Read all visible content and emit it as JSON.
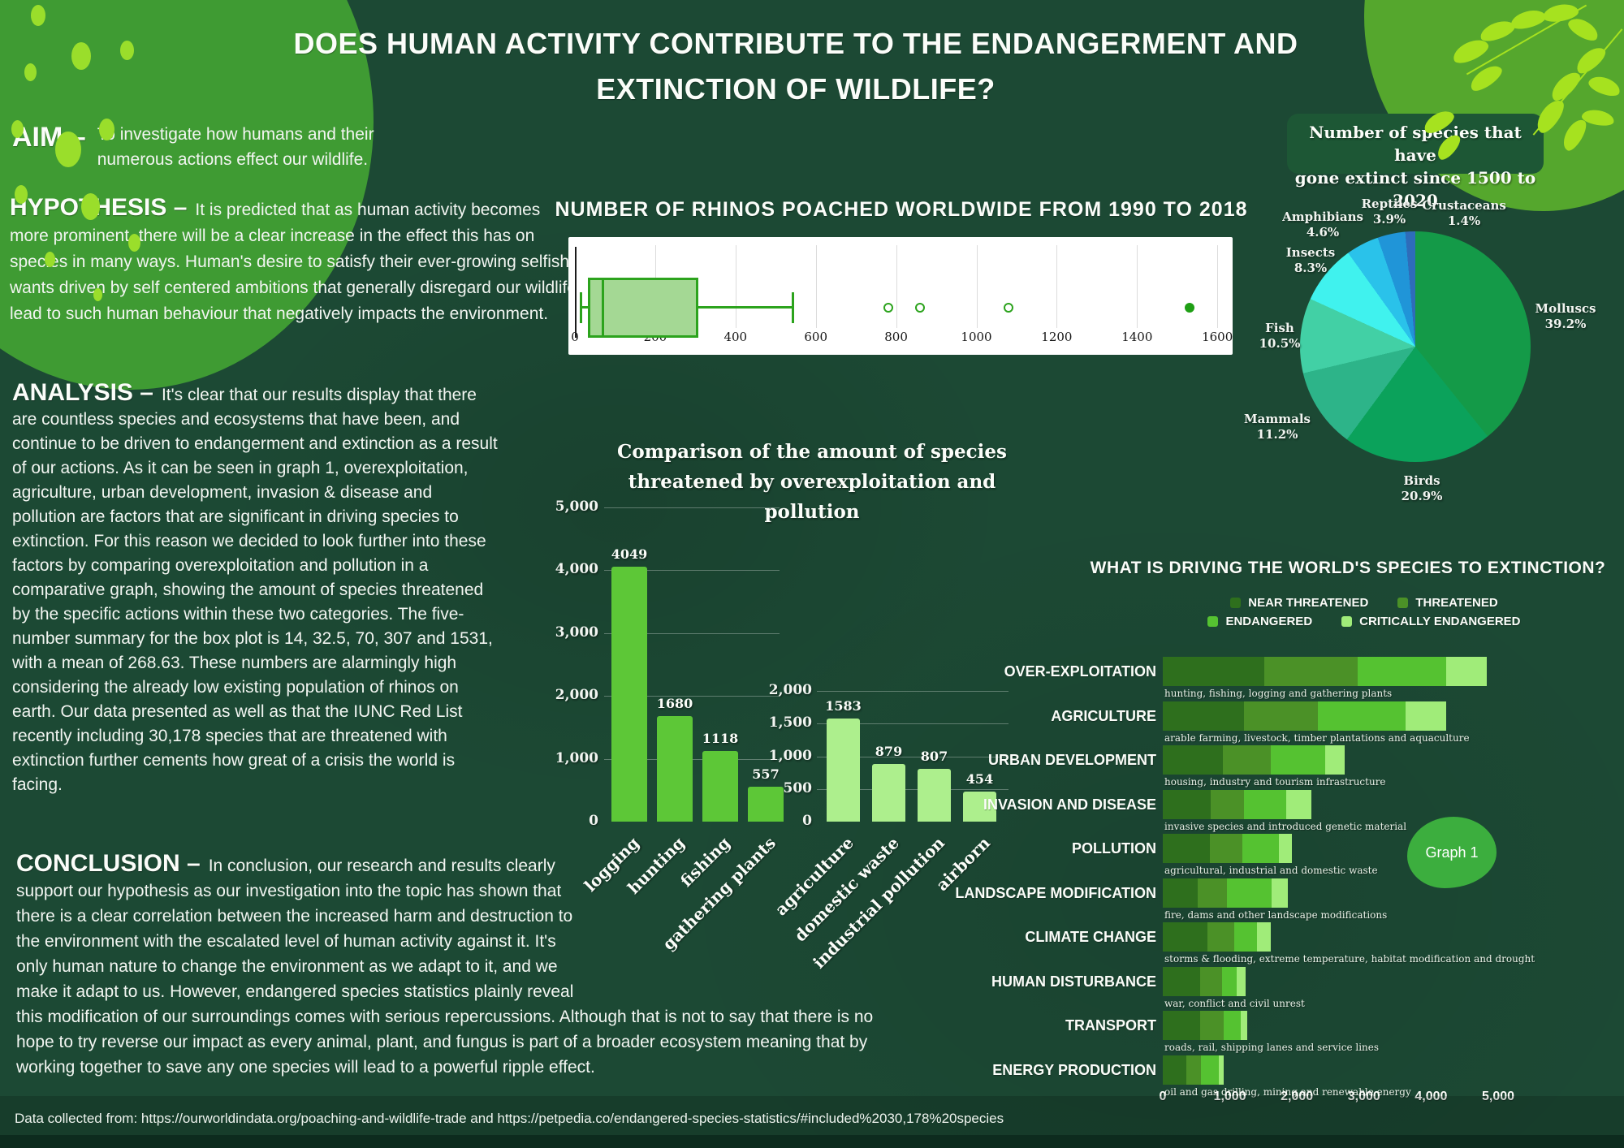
{
  "header": {
    "title_line1": "DOES HUMAN ACTIVITY CONTRIBUTE TO THE ENDANGERMENT AND",
    "title_line2": "EXTINCTION OF WILDLIFE?"
  },
  "sections": {
    "aim": {
      "heading": "AIM –",
      "text": "To investigate how humans and their numerous actions effect our wildlife."
    },
    "hypothesis": {
      "heading": "HYPOTHESIS –",
      "text": "It is predicted that as human activity becomes more prominent, there will be a clear increase in the effect this has on species in many ways. Human's desire to satisfy their ever-growing selfish wants driven by self centered ambitions that generally disregard our wildlife lead to such human behaviour that negatively impacts the environment."
    },
    "analysis": {
      "heading": "ANALYSIS –",
      "text": "It's clear that our results display that there are countless species and ecosystems that have been, and continue to be driven to endangerment and extinction as a result of our actions. As it can be seen in graph 1, overexploitation, agriculture, urban development, invasion & disease and pollution are factors that are significant in driving species to extinction. For this reason we decided to look further into these factors by comparing overexploitation and pollution in a comparative graph, showing the amount of species threatened by the specific actions within these two categories. The five-number summary for the box plot is 14, 32.5, 70, 307 and 1531, with a mean of 268.63. These numbers are alarmingly high considering the already low existing population of rhinos on earth.  Our data presented as well as that the IUNC Red List recently including 30,178 species that are threatened with extinction further cements how great of a crisis the world is facing."
    },
    "conclusion": {
      "heading": "CONCLUSION –",
      "text": "In conclusion, our research and results clearly support our hypothesis as our investigation into the topic has shown that there is a clear correlation between the increased harm and destruction to the environment with the escalated level of human activity against it. It's only human nature to change the environment as we adapt to it, and we make it adapt to us. However, endangered species statistics plainly reveal this modification of our surroundings comes with serious repercussions. Although that is not to say that there is no hope to try reverse our impact as every animal, plant, and fungus is part of a broader ecosystem meaning that by working together to save any one species will lead to a powerful ripple effect."
    }
  },
  "badges": {
    "graph1": "Graph 1"
  },
  "footer": {
    "text": "Data collected from: https://ourworldindata.org/poaching-and-wildlife-trade and https://petpedia.co/endangered-species-statistics/#included%2030,178%20species"
  },
  "chart_data": [
    {
      "id": "rhino-boxplot",
      "type": "boxplot",
      "title": "NUMBER OF RHINOS POACHED WORLDWIDE FROM 1990 TO 2018",
      "orientation": "horizontal",
      "xlim": [
        0,
        1600
      ],
      "xticks": [
        0,
        200,
        400,
        600,
        800,
        1000,
        1200,
        1400,
        1600
      ],
      "five_number_summary": {
        "min": 14,
        "q1": 32.5,
        "median": 70,
        "q3": 307,
        "max": 1531
      },
      "mean": 268.63,
      "upper_whisker": 542,
      "outliers_open": [
        780,
        860,
        1080
      ],
      "outlier_filled": 1531,
      "box_fill": "#a4d894",
      "line_color": "#2ca31d",
      "background": "#ffffff"
    },
    {
      "id": "threat-comparison",
      "type": "bar",
      "title": "Comparison of the amount of species threatened by overexploitation and pollution",
      "title_lines": [
        "Comparison of the amount of species",
        "threatened by overexploitation and",
        "pollution"
      ],
      "charts": [
        {
          "name": "overexploitation",
          "categories": [
            "logging",
            "hunting",
            "fishing",
            "gathering plants"
          ],
          "values": [
            4049,
            1680,
            1118,
            557
          ],
          "ylim": [
            0,
            5000
          ],
          "yticks": [
            0,
            1000,
            2000,
            3000,
            4000,
            5000
          ],
          "bar_color": "#5dc737"
        },
        {
          "name": "pollution",
          "categories": [
            "agriculture",
            "domestic waste",
            "industrial pollution",
            "airborn"
          ],
          "values": [
            1583,
            879,
            807,
            454
          ],
          "ylim": [
            0,
            2000
          ],
          "yticks": [
            0,
            500,
            1000,
            1500,
            2000
          ],
          "bar_color": "#adef8d"
        }
      ]
    },
    {
      "id": "extinct-species-pie",
      "type": "pie",
      "title": "Number of species that have gone extinct since 1500 to 2020",
      "title_lines": [
        "Number of species that have",
        "gone extinct since 1500 to 2020"
      ],
      "direction": "clockwise",
      "start_angle_deg": 0,
      "slices": [
        {
          "label": "Molluscs",
          "pct": 39.2,
          "color": "#149a48"
        },
        {
          "label": "Birds",
          "pct": 20.9,
          "color": "#0ba25b"
        },
        {
          "label": "Mammals",
          "pct": 11.2,
          "color": "#2db489"
        },
        {
          "label": "Fish",
          "pct": 10.5,
          "color": "#42d0a5"
        },
        {
          "label": "Insects",
          "pct": 8.3,
          "color": "#40f2ee"
        },
        {
          "label": "Amphibians",
          "pct": 4.6,
          "color": "#2ac2ea"
        },
        {
          "label": "Reptiles",
          "pct": 3.9,
          "color": "#2095d8"
        },
        {
          "label": "Crustaceans",
          "pct": 1.4,
          "color": "#2e6cba"
        }
      ]
    },
    {
      "id": "extinction-drivers",
      "type": "stacked-bar-horizontal",
      "title": "WHAT IS DRIVING THE WORLD'S SPECIES TO EXTINCTION?",
      "legend": [
        "NEAR THREATENED",
        "THREATENED",
        "ENDANGERED",
        "CRITICALLY ENDANGERED"
      ],
      "legend_colors": [
        "#2e6f1d",
        "#4b9127",
        "#55c231",
        "#a0ec79"
      ],
      "xlim": [
        0,
        5000
      ],
      "xticks": [
        0,
        1000,
        2000,
        3000,
        4000,
        5000
      ],
      "rows": [
        {
          "label": "OVER-EXPLOITATION",
          "sublabel": "hunting, fishing, logging and gathering plants",
          "values": [
            1510,
            1400,
            1320,
            600
          ]
        },
        {
          "label": "AGRICULTURE",
          "sublabel": "arable farming, livestock, timber plantations and aquaculture",
          "values": [
            1210,
            1100,
            1310,
            600
          ]
        },
        {
          "label": "URBAN DEVELOPMENT",
          "sublabel": "housing, industry and tourism infrastructure",
          "values": [
            900,
            715,
            805,
            295
          ]
        },
        {
          "label": "INVASION AND DISEASE",
          "sublabel": "invasive species and introduced genetic material",
          "values": [
            720,
            490,
            625,
            385
          ]
        },
        {
          "label": "POLLUTION",
          "sublabel": "agricultural, industrial and domestic waste",
          "values": [
            700,
            485,
            545,
            195
          ]
        },
        {
          "label": "LANDSCAPE MODIFICATION",
          "sublabel": "fire, dams and other landscape modifications",
          "values": [
            515,
            445,
            665,
            240
          ]
        },
        {
          "label": "CLIMATE CHANGE",
          "sublabel": "storms & flooding, extreme temperature, habitat modification and drought",
          "values": [
            660,
            405,
            340,
            210
          ]
        },
        {
          "label": "HUMAN DISTURBANCE",
          "sublabel": "war, conflict and civil unrest",
          "values": [
            555,
            330,
            215,
            135
          ]
        },
        {
          "label": "TRANSPORT",
          "sublabel": "roads, rail, shipping lanes and service lines",
          "values": [
            555,
            355,
            250,
            95
          ]
        },
        {
          "label": "ENERGY PRODUCTION",
          "sublabel": "oil and gas drilling, mining and renewable energy",
          "values": [
            355,
            220,
            260,
            75
          ]
        }
      ],
      "annotation": "Graph 1"
    }
  ],
  "theme": {
    "background": "#1c4934",
    "corner_blob_left": "#3f9b33",
    "corner_blob_right": "#55a72d",
    "lime_accent": "#9ade2b"
  }
}
